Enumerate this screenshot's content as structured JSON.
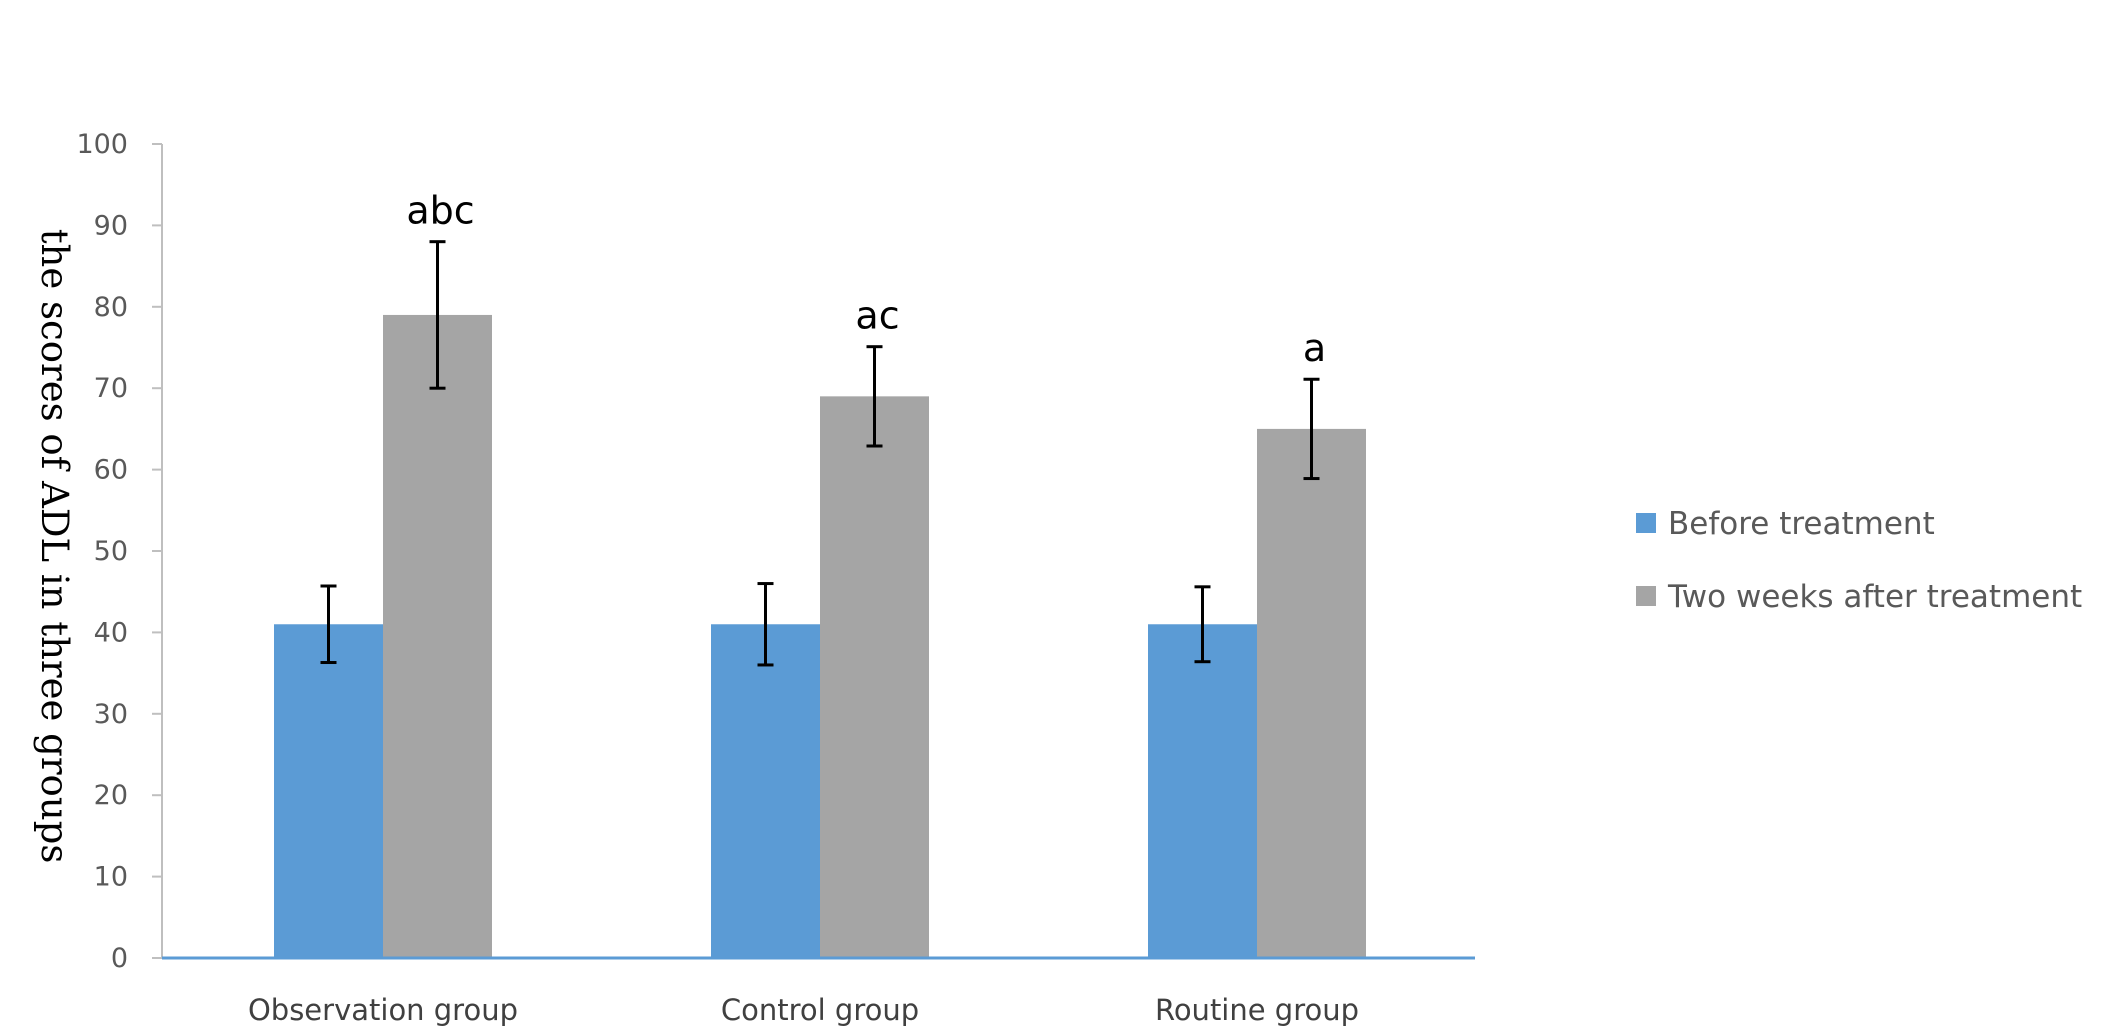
{
  "chart_data": {
    "type": "bar",
    "title": "",
    "xlabel": "",
    "ylabel": "the scores of ADL in three groups",
    "ylim": [
      0,
      100
    ],
    "yticks": [
      0,
      10,
      20,
      30,
      40,
      50,
      60,
      70,
      80,
      90,
      100
    ],
    "categories": [
      "Observation group",
      "Control group",
      "Routine group"
    ],
    "series": [
      {
        "name": "Before treatment",
        "color": "#5b9bd5",
        "values": [
          41,
          41,
          41
        ],
        "error": [
          4.7,
          5.0,
          4.6
        ],
        "labels": [
          "",
          "",
          ""
        ]
      },
      {
        "name": "Two weeks after treatment",
        "color": "#a5a5a5",
        "values": [
          79,
          69,
          65
        ],
        "error": [
          9.0,
          6.1,
          6.1
        ],
        "labels": [
          "abc",
          "ac",
          "a"
        ]
      }
    ],
    "grid": false,
    "legend": "right"
  }
}
